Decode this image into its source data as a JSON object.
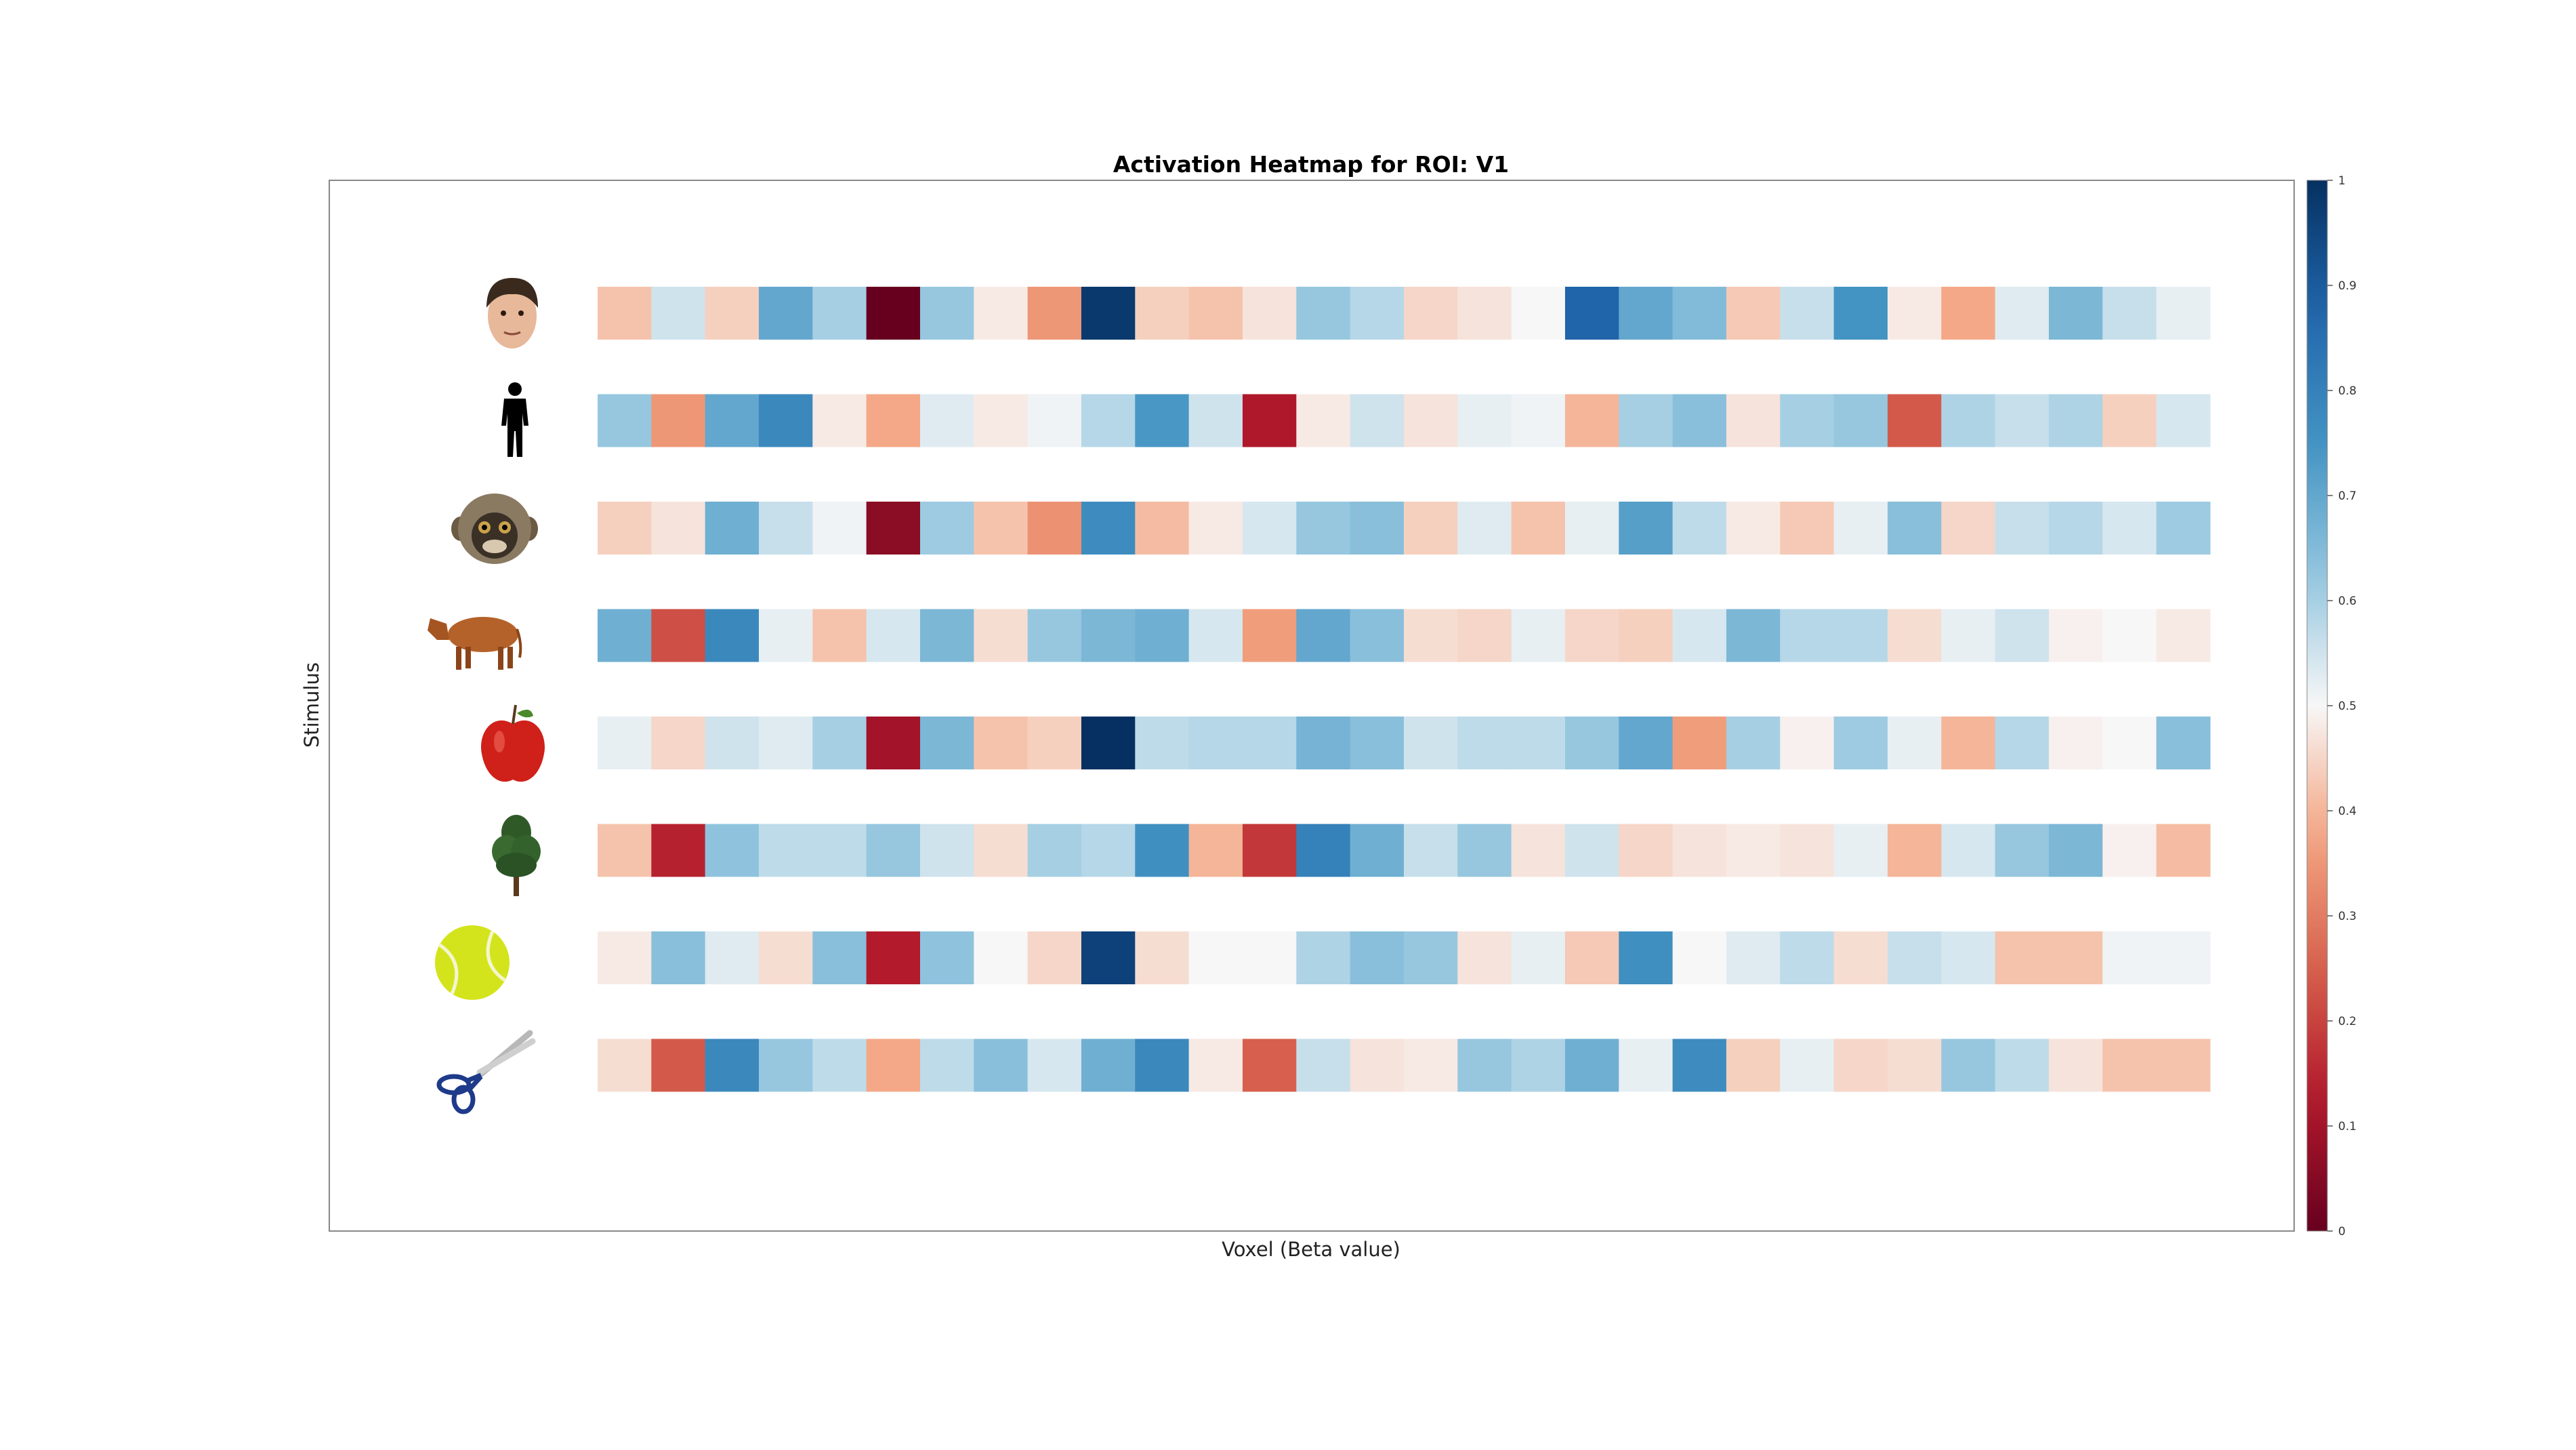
{
  "chart_data": {
    "type": "heatmap",
    "title": "Activation Heatmap for ROI: V1",
    "xlabel": "Voxel (Beta value)",
    "ylabel": "Stimulus",
    "colormap": "RdBu",
    "colorbar": {
      "min": 0,
      "max": 1,
      "ticks": [
        "0",
        "0.1",
        "0.2",
        "0.3",
        "0.4",
        "0.5",
        "0.6",
        "0.7",
        "0.8",
        "0.9",
        "1"
      ]
    },
    "stimuli": [
      {
        "icon": "face-icon",
        "values": [
          0.42,
          0.55,
          0.44,
          0.7,
          0.6,
          0.0,
          0.62,
          0.48,
          0.35,
          0.98,
          0.44,
          0.42,
          0.47,
          0.62,
          0.58,
          0.45,
          0.47,
          0.5,
          0.88,
          0.7,
          0.65,
          0.43,
          0.56,
          0.75,
          0.48,
          0.38,
          0.53,
          0.66,
          0.56,
          0.52
        ]
      },
      {
        "icon": "body-icon",
        "values": [
          0.62,
          0.35,
          0.7,
          0.78,
          0.48,
          0.38,
          0.53,
          0.48,
          0.51,
          0.58,
          0.74,
          0.55,
          0.12,
          0.48,
          0.55,
          0.47,
          0.52,
          0.51,
          0.4,
          0.6,
          0.64,
          0.47,
          0.6,
          0.62,
          0.24,
          0.59,
          0.56,
          0.59,
          0.44,
          0.54
        ]
      },
      {
        "icon": "monkey-face-icon",
        "values": [
          0.44,
          0.47,
          0.68,
          0.56,
          0.51,
          0.06,
          0.61,
          0.42,
          0.34,
          0.77,
          0.41,
          0.48,
          0.54,
          0.62,
          0.64,
          0.44,
          0.53,
          0.42,
          0.52,
          0.72,
          0.57,
          0.48,
          0.43,
          0.52,
          0.64,
          0.45,
          0.56,
          0.58,
          0.54,
          0.61
        ]
      },
      {
        "icon": "cow-icon",
        "values": [
          0.68,
          0.22,
          0.78,
          0.52,
          0.42,
          0.54,
          0.66,
          0.46,
          0.62,
          0.66,
          0.68,
          0.54,
          0.36,
          0.7,
          0.64,
          0.46,
          0.45,
          0.52,
          0.45,
          0.44,
          0.54,
          0.66,
          0.58,
          0.58,
          0.46,
          0.52,
          0.55,
          0.49,
          0.5,
          0.48
        ]
      },
      {
        "icon": "apple-icon",
        "values": [
          0.52,
          0.45,
          0.55,
          0.53,
          0.6,
          0.1,
          0.66,
          0.42,
          0.44,
          1.0,
          0.57,
          0.58,
          0.58,
          0.67,
          0.64,
          0.55,
          0.57,
          0.57,
          0.62,
          0.7,
          0.36,
          0.6,
          0.49,
          0.61,
          0.52,
          0.4,
          0.58,
          0.49,
          0.5,
          0.64
        ]
      },
      {
        "icon": "tree-icon",
        "values": [
          0.42,
          0.14,
          0.63,
          0.57,
          0.57,
          0.62,
          0.55,
          0.46,
          0.6,
          0.58,
          0.76,
          0.4,
          0.18,
          0.8,
          0.68,
          0.56,
          0.62,
          0.47,
          0.55,
          0.45,
          0.47,
          0.48,
          0.47,
          0.52,
          0.4,
          0.54,
          0.62,
          0.66,
          0.49,
          0.41
        ]
      },
      {
        "icon": "tennis-ball-icon",
        "values": [
          0.48,
          0.64,
          0.53,
          0.46,
          0.64,
          0.13,
          0.63,
          0.5,
          0.45,
          0.96,
          0.46,
          0.5,
          0.5,
          0.59,
          0.64,
          0.62,
          0.47,
          0.52,
          0.43,
          0.76,
          0.5,
          0.53,
          0.57,
          0.46,
          0.56,
          0.54,
          0.42,
          0.42,
          0.51,
          0.51
        ]
      },
      {
        "icon": "scissors-icon",
        "values": [
          0.46,
          0.24,
          0.78,
          0.62,
          0.57,
          0.38,
          0.57,
          0.64,
          0.54,
          0.68,
          0.78,
          0.48,
          0.25,
          0.56,
          0.47,
          0.48,
          0.62,
          0.59,
          0.68,
          0.52,
          0.77,
          0.44,
          0.52,
          0.45,
          0.46,
          0.62,
          0.57,
          0.47,
          0.42,
          0.42
        ]
      }
    ]
  }
}
